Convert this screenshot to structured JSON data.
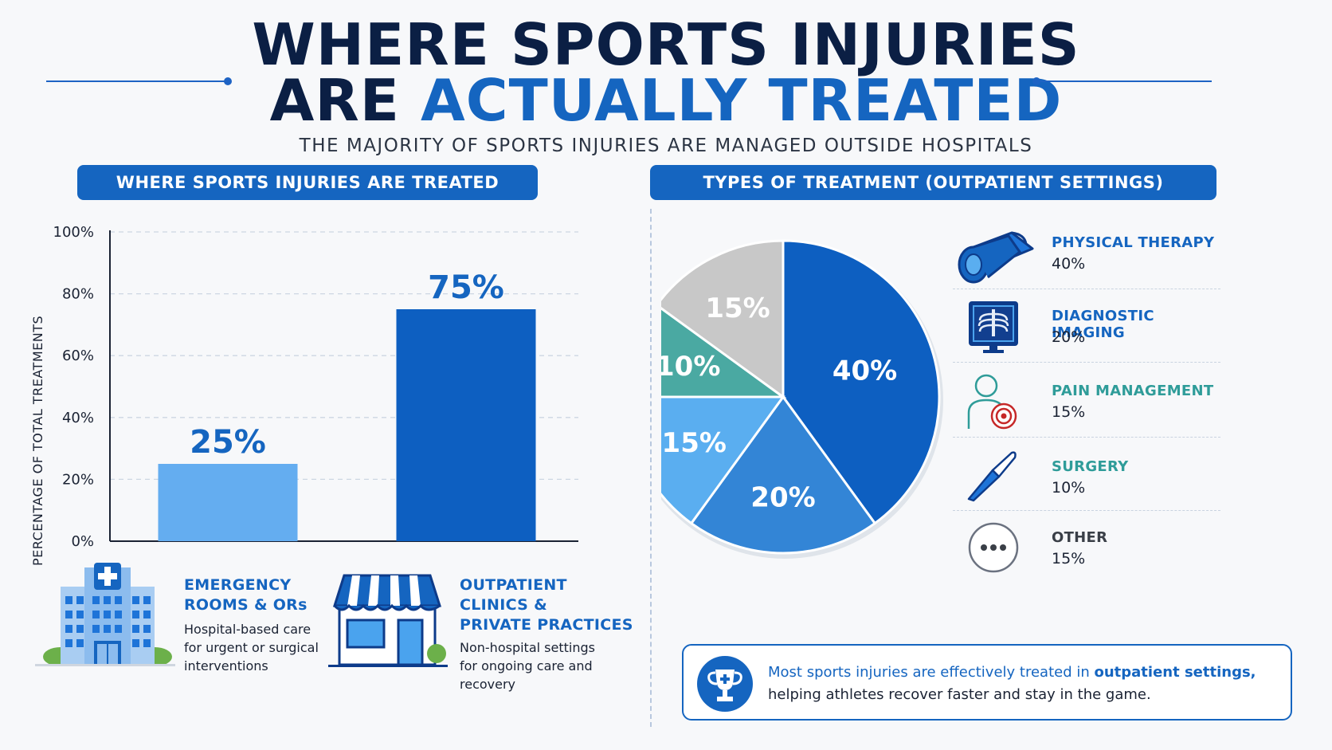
{
  "header": {
    "title_line1": "WHERE SPORTS INJURIES",
    "title_line2_part1": "ARE ",
    "title_line2_accent": "ACTUALLY TREATED",
    "subtitle": "THE MAJORITY OF SPORTS INJURIES ARE MANAGED OUTSIDE HOSPITALS"
  },
  "left_section": {
    "heading": "WHERE SPORTS INJURIES ARE TREATED",
    "legend": [
      {
        "title_lines": [
          "EMERGENCY",
          "ROOMS & ORs"
        ],
        "desc_lines": [
          "Hospital-based care",
          "for urgent or surgical",
          "interventions"
        ]
      },
      {
        "title_lines": [
          "OUTPATIENT",
          "CLINICS &",
          "PRIVATE PRACTICES"
        ],
        "desc_lines": [
          "Non-hospital settings",
          "for ongoing care and",
          "recovery"
        ]
      }
    ]
  },
  "right_section": {
    "heading": "TYPES OF TREATMENT (OUTPATIENT SETTINGS)",
    "callout": {
      "text_part1": "Most sports injuries are effectively treated in ",
      "text_bold": "outpatient settings,",
      "text_part2": "helping athletes recover faster and stay in the game."
    }
  },
  "chart_data": [
    {
      "type": "bar",
      "title": "WHERE SPORTS INJURIES ARE TREATED",
      "ylabel": "PERCENTAGE OF TOTAL TREATMENTS",
      "xlabel": "",
      "categories": [
        "EMERGENCY ROOMS & ORs",
        "OUTPATIENT CLINICS & PRIVATE PRACTICES"
      ],
      "values": [
        25,
        75
      ],
      "value_labels": [
        "25%",
        "75%"
      ],
      "colors": [
        "#64adf0",
        "#0d5fc1"
      ],
      "ylim": [
        0,
        100
      ],
      "yticks": [
        0,
        20,
        40,
        60,
        80,
        100
      ],
      "ytick_labels": [
        "0%",
        "20%",
        "40%",
        "60%",
        "80%",
        "100%"
      ],
      "grid": true
    },
    {
      "type": "pie",
      "title": "TYPES OF TREATMENT (OUTPATIENT SETTINGS)",
      "categories": [
        "PHYSICAL THERAPY",
        "DIAGNOSTIC IMAGING",
        "PAIN MANAGEMENT",
        "SURGERY",
        "OTHER"
      ],
      "values": [
        40,
        20,
        15,
        10,
        15
      ],
      "value_labels": [
        "40%",
        "20%",
        "15%",
        "10%",
        "15%"
      ],
      "colors": [
        "#0d5fc1",
        "#3385d6",
        "#5aaef0",
        "#4aa9a2",
        "#c8c8c8"
      ],
      "legend_text_colors": [
        "#1565c0",
        "#1565c0",
        "#2f9c99",
        "#2f9c99",
        "#3a3f47"
      ],
      "legend_icons": [
        "foam-roller-icon",
        "xray-icon",
        "pain-target-icon",
        "scalpel-icon",
        "more-dots-icon"
      ],
      "legend_placement": "right"
    }
  ]
}
